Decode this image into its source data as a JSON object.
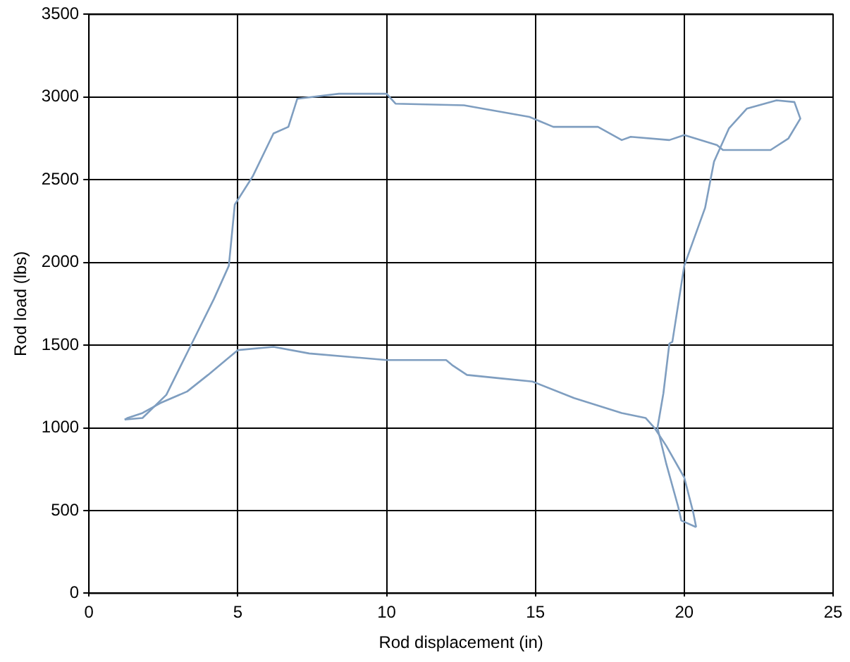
{
  "chart_data": {
    "type": "line",
    "xlabel": "Rod displacement (in)",
    "ylabel": "Rod load (lbs)",
    "xlim": [
      0,
      25
    ],
    "xticks": [
      0,
      5,
      10,
      15,
      20,
      25
    ],
    "ylim": [
      0,
      3500
    ],
    "yticks": [
      0,
      500,
      1000,
      1500,
      2000,
      2500,
      3000,
      3500
    ],
    "grid": true,
    "marker": "none",
    "line_style": "solid",
    "legend": false,
    "series": [
      {
        "color": "#7f9ec0",
        "x": [
          1.2,
          1.8,
          2.6,
          3.4,
          4.2,
          4.7,
          4.9,
          5.5,
          6.2,
          6.7,
          7.0,
          8.4,
          10.0,
          10.3,
          12.6,
          14.8,
          15.6,
          17.1,
          17.9,
          18.2,
          19.5,
          20.0,
          21.1,
          21.3,
          22.9,
          23.5,
          23.9,
          23.7,
          23.1,
          22.1,
          21.5,
          21.0,
          20.7,
          20.1,
          20.0,
          19.6,
          19.5,
          19.3,
          19.1,
          19.4,
          19.8,
          19.9,
          20.4
        ],
        "values": [
          1050,
          1060,
          1200,
          1490,
          1780,
          1980,
          2350,
          2520,
          2780,
          2820,
          2990,
          3020,
          3020,
          2960,
          2950,
          2880,
          2820,
          2820,
          2740,
          2760,
          2740,
          2770,
          2710,
          2680,
          2680,
          2750,
          2870,
          2970,
          2980,
          2930,
          2810,
          2610,
          2330,
          2030,
          1980,
          1520,
          1510,
          1210,
          1000,
          780,
          520,
          440,
          400
        ]
      },
      {
        "color": "#7f9ec0",
        "x": [
          20.4,
          20.3,
          20.0,
          19.4,
          19.0,
          18.7,
          17.9,
          16.3,
          14.9,
          13.8,
          12.7,
          12.2,
          12.0,
          10.0,
          7.4,
          6.2,
          5.0,
          4.0,
          3.3,
          2.4,
          1.8,
          1.3,
          1.2
        ],
        "values": [
          400,
          490,
          700,
          890,
          1000,
          1060,
          1090,
          1180,
          1280,
          1300,
          1320,
          1380,
          1410,
          1410,
          1450,
          1490,
          1470,
          1320,
          1220,
          1150,
          1090,
          1060,
          1050
        ]
      }
    ]
  }
}
